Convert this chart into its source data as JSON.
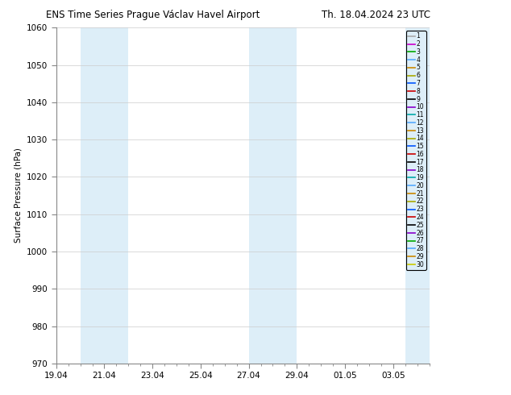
{
  "title_left": "ENS Time Series Prague Václav Havel Airport",
  "title_right": "Th. 18.04.2024 23 UTC",
  "ylabel": "Surface Pressure (hPa)",
  "ylim": [
    970,
    1060
  ],
  "yticks": [
    970,
    980,
    990,
    1000,
    1010,
    1020,
    1030,
    1040,
    1050,
    1060
  ],
  "x_tick_labels": [
    "19.04",
    "21.04",
    "23.04",
    "25.04",
    "27.04",
    "29.04",
    "01.05",
    "03.05"
  ],
  "x_tick_positions": [
    0,
    2,
    4,
    6,
    8,
    10,
    12,
    14
  ],
  "x_minor_tick_step": 0.5,
  "xlim": [
    0,
    15.5
  ],
  "shaded_bands": [
    {
      "start": 1.0,
      "end": 3.0
    },
    {
      "start": 8.0,
      "end": 10.0
    },
    {
      "start": 14.5,
      "end": 15.5
    }
  ],
  "legend_colors": [
    "#aaaaaa",
    "#cc00cc",
    "#00aa00",
    "#55aaff",
    "#cc8800",
    "#aaaa00",
    "#0055ff",
    "#cc0000",
    "#000000",
    "#8800cc",
    "#00aaaa",
    "#55aaff",
    "#cc8800",
    "#aaaa00",
    "#0055ff",
    "#cc0000",
    "#000000",
    "#8800cc",
    "#00aaaa",
    "#55aaff",
    "#cc8800",
    "#aaaa00",
    "#0055ff",
    "#cc0000",
    "#000000",
    "#8800cc",
    "#00aa00",
    "#55aaff",
    "#cc8800",
    "#cccc00"
  ],
  "n_members": 30,
  "background_color": "#ffffff",
  "shading_color": "#ddeef8",
  "grid_color": "#cccccc",
  "title_fontsize": 8.5,
  "axis_fontsize": 7.5,
  "legend_fontsize": 5.5
}
